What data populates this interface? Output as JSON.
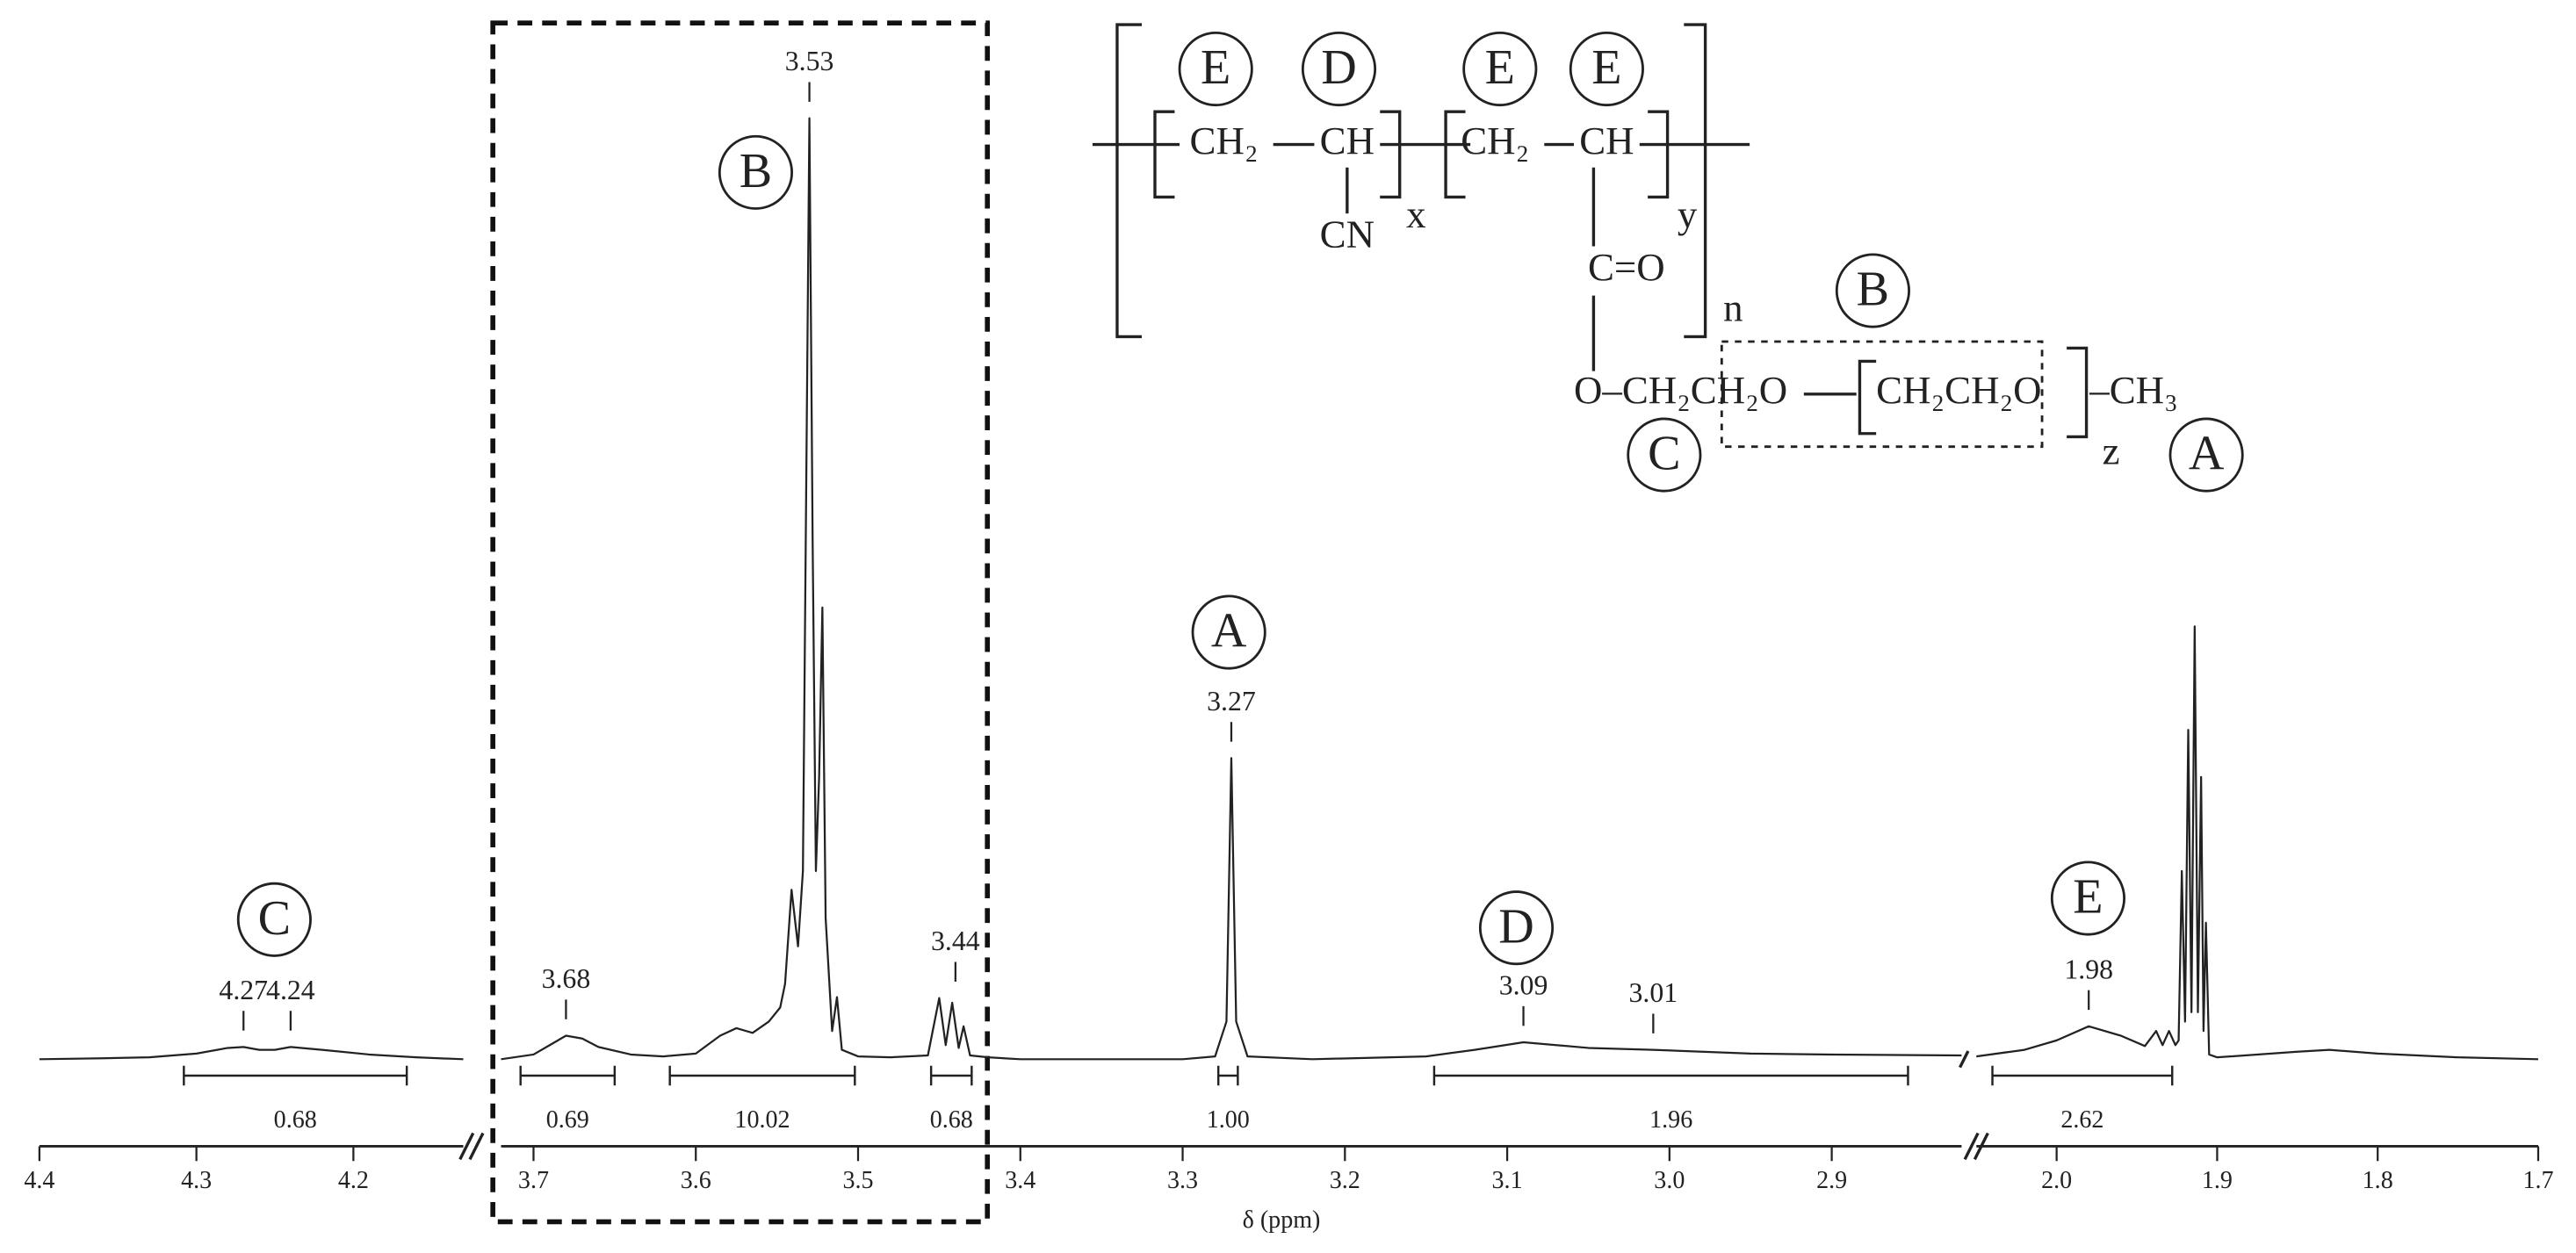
{
  "chart_data": {
    "type": "nmr",
    "xlabel": "δ (ppm)",
    "ylim": [
      0,
      100
    ],
    "color": "#222222",
    "segments": [
      {
        "xlim": [
          4.4,
          4.13
        ],
        "xticks": [
          4.4,
          4.3,
          4.2
        ]
      },
      {
        "xlim": [
          3.72,
          2.82
        ],
        "xticks": [
          3.7,
          3.6,
          3.5,
          3.4,
          3.3,
          3.2,
          3.1,
          {
            "value": 3,
            "label": "3.0"
          },
          2.9
        ]
      },
      {
        "xlim": [
          2.05,
          1.7
        ],
        "xticks": [
          {
            "value": 2,
            "label": "2.0"
          },
          1.9,
          1.8,
          1.7
        ]
      }
    ],
    "x": [
      4.4,
      4.36,
      4.33,
      4.3,
      4.28,
      4.27,
      4.26,
      4.25,
      4.24,
      4.22,
      4.19,
      4.16,
      4.13,
      null,
      3.72,
      3.7,
      3.69,
      3.68,
      3.67,
      3.66,
      3.64,
      3.62,
      3.6,
      3.585,
      3.575,
      3.565,
      3.555,
      3.548,
      3.545,
      3.541,
      3.537,
      3.534,
      3.532,
      3.53,
      3.528,
      3.526,
      3.524,
      3.522,
      3.52,
      3.516,
      3.513,
      3.51,
      3.5,
      3.48,
      3.457,
      3.45,
      3.446,
      3.442,
      3.438,
      3.435,
      3.431,
      3.42,
      3.4,
      3.3,
      3.28,
      3.273,
      3.27,
      3.267,
      3.26,
      3.22,
      3.15,
      3.12,
      3.09,
      3.05,
      3.01,
      2.95,
      2.9,
      2.82,
      null,
      2.05,
      2.02,
      2.0,
      1.98,
      1.96,
      1.945,
      1.938,
      1.934,
      1.93,
      1.926,
      1.924,
      1.922,
      1.92,
      1.918,
      1.916,
      1.914,
      1.912,
      1.91,
      1.9085,
      1.907,
      1.905,
      1.9,
      1.85,
      1.83,
      1.8,
      1.75,
      1.7
    ],
    "values": [
      0,
      0.1,
      0.2,
      0.6,
      1.2,
      1.3,
      1.0,
      1.0,
      1.3,
      1.0,
      0.5,
      0.2,
      0,
      null,
      0,
      0.5,
      1.5,
      2.5,
      2.2,
      1.3,
      0.5,
      0.3,
      0.6,
      2.5,
      3.3,
      2.8,
      4.0,
      5.5,
      8,
      18,
      12,
      20,
      60,
      100,
      55,
      20,
      30,
      48,
      15,
      3,
      6.6,
      1,
      0.3,
      0.2,
      0.4,
      6.5,
      1.5,
      6,
      1.2,
      3.5,
      0.4,
      0.2,
      0,
      0,
      0.3,
      4,
      32,
      4,
      0.3,
      0,
      0.3,
      1,
      1.8,
      1.2,
      1.0,
      0.6,
      0.5,
      0.4,
      null,
      0.3,
      1,
      2,
      3.5,
      2.5,
      1.4,
      3,
      1.5,
      3,
      1.5,
      2,
      20,
      4,
      35,
      5,
      46,
      5,
      30,
      3,
      14.5,
      0.5,
      0.2,
      0.8,
      1,
      0.6,
      0.2,
      0
    ],
    "peaks": [
      4.27,
      4.24,
      3.68,
      3.53,
      3.44,
      3.27,
      3.09,
      3.01,
      1.98
    ],
    "annotations": [
      "C",
      "B",
      "A",
      "D",
      "E"
    ],
    "integrals": [
      {
        "value": 0.68,
        "range": [
          4.308,
          4.166
        ]
      },
      {
        "value": 0.69,
        "range": [
          3.708,
          3.65
        ]
      },
      {
        "value": 10.02,
        "range": [
          3.616,
          3.502
        ]
      },
      {
        "value": 0.68,
        "range": [
          3.455,
          3.43
        ]
      },
      {
        "value": 1,
        "label": "1.00",
        "range": [
          3.278,
          3.266
        ]
      },
      {
        "value": 1.96,
        "range": [
          3.145,
          2.853
        ]
      },
      {
        "value": 2.62,
        "range": [
          2.04,
          1.928
        ]
      }
    ]
  },
  "structure": {
    "labels": [
      "CH₂",
      "CH",
      "CN",
      "x",
      "CH₂",
      "CH",
      "y",
      "C=O",
      "n",
      "O–CH₂CH₂O",
      "CH₂CH₂O",
      "–CH₃",
      "z"
    ],
    "units": [
      "E",
      "D",
      "E",
      "E",
      "B",
      "C",
      "A"
    ]
  }
}
